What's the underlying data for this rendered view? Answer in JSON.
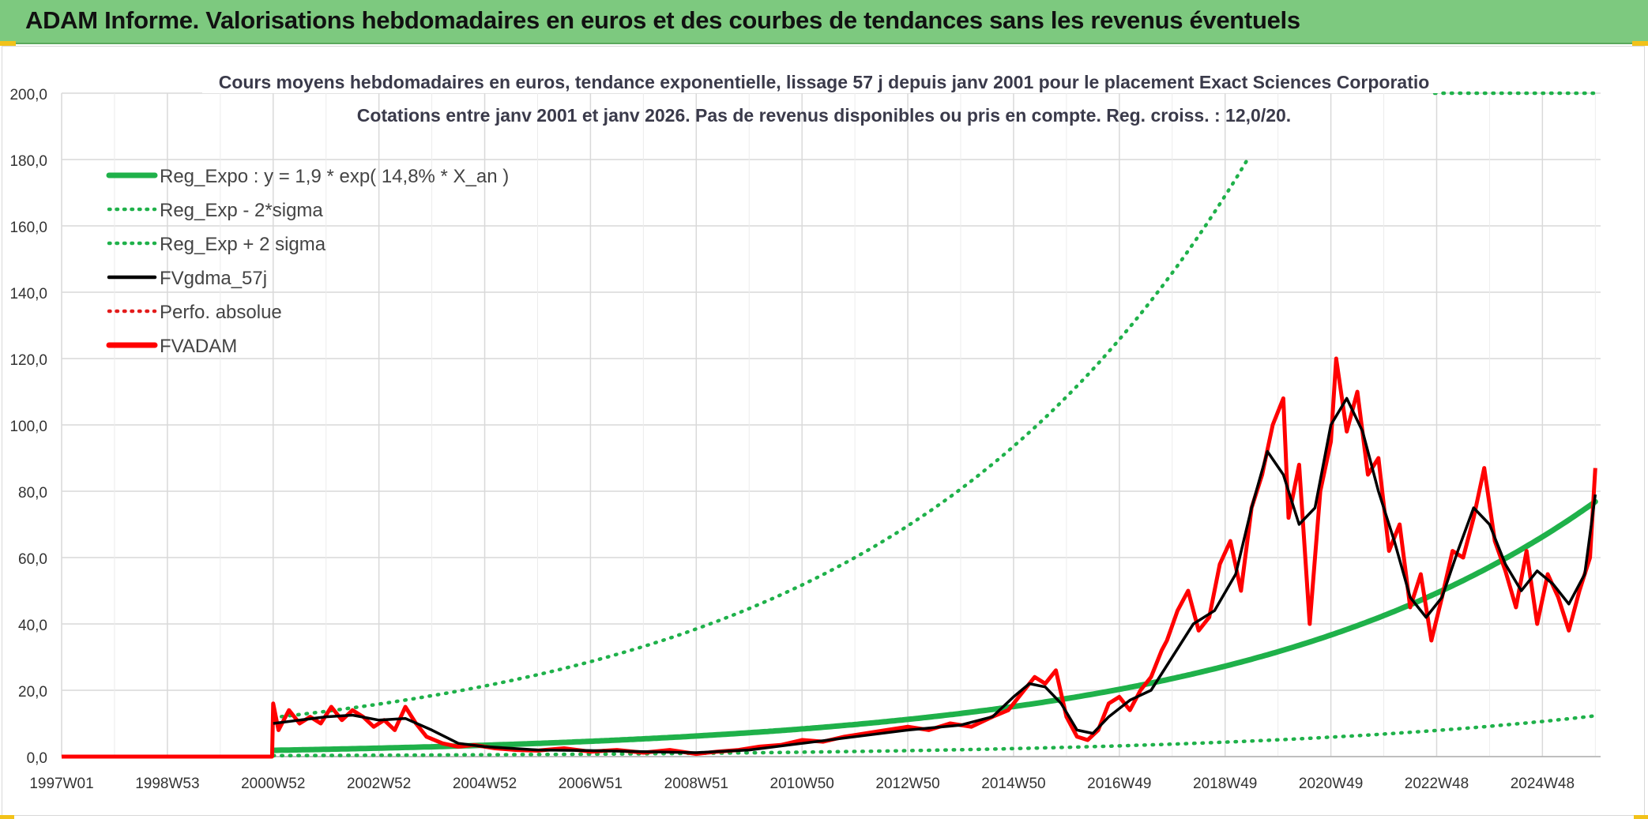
{
  "header": {
    "title": "ADAM Informe. Valorisations hebdomadaires en euros et des courbes de tendances sans les revenus éventuels"
  },
  "colors": {
    "banner": "#7dc97f",
    "reg_expo": "#1fb14a",
    "sigma": "#1fb14a",
    "fvgdma": "#000000",
    "perfo": "#e31b1b",
    "fvadam": "#ff0000",
    "grid": "#d9d9d9"
  },
  "chart_data": {
    "type": "line",
    "title": "Cours moyens hebdomadaires en euros, tendance exponentielle, lissage 57 j depuis janv 2001 pour le placement Exact Sciences Corporatio",
    "subtitle": "Cotations entre janv 2001 et janv 2026. Pas de revenus disponibles ou pris en compte. Reg. croiss. : 12,0/20.",
    "xlabel": "",
    "ylabel": "",
    "xlim": [
      1997.0,
      2026.1
    ],
    "ylim": [
      0,
      200
    ],
    "y_ticks": [
      "0,0",
      "20,0",
      "40,0",
      "60,0",
      "80,0",
      "100,0",
      "120,0",
      "140,0",
      "160,0",
      "180,0",
      "200,0"
    ],
    "x_ticks": [
      {
        "label": "1997W01",
        "t": 1997.0
      },
      {
        "label": "1998W53",
        "t": 1999.0
      },
      {
        "label": "2000W52",
        "t": 2001.0
      },
      {
        "label": "2002W52",
        "t": 2003.0
      },
      {
        "label": "2004W52",
        "t": 2005.0
      },
      {
        "label": "2006W51",
        "t": 2007.0
      },
      {
        "label": "2008W51",
        "t": 2009.0
      },
      {
        "label": "2010W50",
        "t": 2011.0
      },
      {
        "label": "2012W50",
        "t": 2013.0
      },
      {
        "label": "2014W50",
        "t": 2015.0
      },
      {
        "label": "2016W49",
        "t": 2017.0
      },
      {
        "label": "2018W49",
        "t": 2019.0
      },
      {
        "label": "2020W49",
        "t": 2021.0
      },
      {
        "label": "2022W48",
        "t": 2023.0
      },
      {
        "label": "2024W48",
        "t": 2025.0
      }
    ],
    "legend": [
      {
        "key": "reg_expo",
        "label": "Reg_Expo : y = 1,9 * exp( 14,8% *  X_an )",
        "style": "solid-thick"
      },
      {
        "key": "sigma_minus",
        "label": "Reg_Exp - 2*sigma",
        "style": "dotted"
      },
      {
        "key": "sigma_plus",
        "label": "Reg_Exp + 2 sigma",
        "style": "dotted"
      },
      {
        "key": "fvgdma",
        "label": "FVgdma_57j",
        "style": "solid"
      },
      {
        "key": "perfo",
        "label": "Perfo. absolue",
        "style": "dotted"
      },
      {
        "key": "fvadam",
        "label": "FVADAM",
        "style": "solid-thick"
      }
    ],
    "legend_position": "top-left",
    "regression": {
      "a": 1.9,
      "rate": 0.148,
      "start": 2001.0,
      "end": 2026.0,
      "sigma_minus_factor": 0.16,
      "sigma_plus_factor": 6.2
    },
    "series": [
      {
        "name": "FVADAM",
        "x": [
          1997.0,
          2000.98,
          2001.0,
          2001.1,
          2001.3,
          2001.5,
          2001.7,
          2001.9,
          2002.1,
          2002.3,
          2002.5,
          2002.7,
          2002.9,
          2003.1,
          2003.3,
          2003.5,
          2003.7,
          2003.9,
          2004.2,
          2004.5,
          2004.8,
          2005.2,
          2005.6,
          2006.0,
          2006.5,
          2007.0,
          2007.5,
          2008.0,
          2008.5,
          2009.0,
          2009.4,
          2009.8,
          2010.2,
          2010.6,
          2011.0,
          2011.4,
          2011.8,
          2012.2,
          2012.6,
          2013.0,
          2013.4,
          2013.8,
          2014.2,
          2014.6,
          2014.9,
          2015.2,
          2015.4,
          2015.6,
          2015.8,
          2016.0,
          2016.2,
          2016.4,
          2016.6,
          2016.8,
          2017.0,
          2017.2,
          2017.4,
          2017.6,
          2017.8,
          2017.9,
          2018.1,
          2018.3,
          2018.5,
          2018.7,
          2018.9,
          2019.1,
          2019.3,
          2019.5,
          2019.7,
          2019.9,
          2020.1,
          2020.2,
          2020.4,
          2020.6,
          2020.8,
          2021.0,
          2021.1,
          2021.3,
          2021.5,
          2021.7,
          2021.9,
          2022.1,
          2022.3,
          2022.5,
          2022.7,
          2022.9,
          2023.1,
          2023.3,
          2023.5,
          2023.7,
          2023.9,
          2024.1,
          2024.3,
          2024.5,
          2024.7,
          2024.9,
          2025.1,
          2025.3,
          2025.5,
          2025.7,
          2025.9,
          2026.0
        ],
        "values": [
          0,
          0,
          16,
          8,
          14,
          10,
          12,
          10,
          15,
          11,
          14,
          12,
          9,
          11,
          8,
          15,
          10,
          6,
          4,
          3,
          3.5,
          2.5,
          2,
          1.8,
          2.5,
          1.5,
          2,
          1.2,
          2,
          0.8,
          1.5,
          2,
          3,
          3.5,
          5,
          4.5,
          6,
          7,
          8,
          9,
          8,
          10,
          9,
          12,
          14,
          20,
          24,
          22,
          26,
          12,
          6,
          5,
          8,
          16,
          18,
          14,
          20,
          24,
          32,
          35,
          44,
          50,
          38,
          42,
          58,
          65,
          50,
          75,
          85,
          100,
          108,
          72,
          88,
          40,
          80,
          95,
          120,
          98,
          110,
          85,
          90,
          62,
          70,
          45,
          55,
          35,
          48,
          62,
          60,
          72,
          87,
          65,
          56,
          45,
          62,
          40,
          55,
          48,
          38,
          50,
          60,
          87
        ],
        "color": "#ff0000"
      },
      {
        "name": "FVgdma_57j",
        "x": [
          2001.0,
          2001.5,
          2002.0,
          2002.5,
          2003.0,
          2003.5,
          2004.0,
          2004.5,
          2005.0,
          2006.0,
          2007.0,
          2008.0,
          2009.0,
          2010.0,
          2011.0,
          2012.0,
          2013.0,
          2014.0,
          2014.6,
          2015.0,
          2015.3,
          2015.6,
          2015.9,
          2016.2,
          2016.5,
          2016.8,
          2017.2,
          2017.6,
          2018.0,
          2018.4,
          2018.8,
          2019.2,
          2019.5,
          2019.8,
          2020.1,
          2020.4,
          2020.7,
          2021.0,
          2021.3,
          2021.6,
          2021.9,
          2022.2,
          2022.5,
          2022.8,
          2023.1,
          2023.4,
          2023.7,
          2024.0,
          2024.3,
          2024.6,
          2024.9,
          2025.2,
          2025.5,
          2025.8,
          2026.0
        ],
        "values": [
          10,
          11,
          12,
          12.5,
          11,
          11.5,
          8,
          4,
          3,
          2,
          1.8,
          1.5,
          1.2,
          2,
          4,
          6,
          8,
          9.5,
          12,
          18,
          22,
          21,
          16,
          8,
          7,
          12,
          17,
          20,
          30,
          40,
          44,
          55,
          75,
          92,
          85,
          70,
          75,
          100,
          108,
          98,
          80,
          65,
          48,
          42,
          48,
          62,
          75,
          70,
          58,
          50,
          56,
          52,
          46,
          55,
          79
        ],
        "color": "#000000"
      },
      {
        "name": "Perfo. absolue",
        "x": [
          1997.0,
          2000.98
        ],
        "values": [
          0,
          0
        ],
        "color": "#e31b1b"
      }
    ]
  }
}
